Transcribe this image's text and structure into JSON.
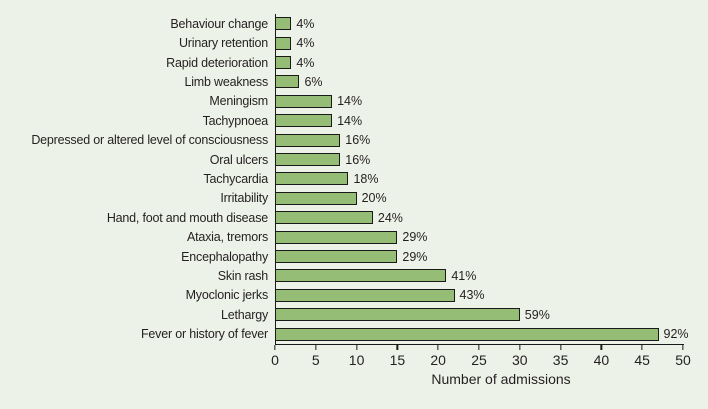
{
  "page": {
    "background_color": "#edf2e8",
    "text_color": "#231f20"
  },
  "chart_data": {
    "type": "bar",
    "orientation": "horizontal",
    "title": "",
    "xlabel": "Number of admissions",
    "ylabel": "",
    "xlim": [
      0,
      50
    ],
    "xticks": [
      0,
      5,
      10,
      15,
      20,
      25,
      30,
      35,
      40,
      45,
      50
    ],
    "grid": "off",
    "bar_color": "#95bd76",
    "bar_border_color": "#1a1a1a",
    "categories": [
      "Behaviour change",
      "Urinary retention",
      "Rapid deterioration",
      "Limb weakness",
      "Meningism",
      "Tachypnoea",
      "Depressed or altered level of consciousness",
      "Oral ulcers",
      "Tachycardia",
      "Irritability",
      "Hand, foot and mouth disease",
      "Ataxia, tremors",
      "Encephalopathy",
      "Skin rash",
      "Myoclonic jerks",
      "Lethargy",
      "Fever or history of fever"
    ],
    "values": [
      2,
      2,
      2,
      3,
      7,
      7,
      8,
      8,
      9,
      10,
      12,
      15,
      15,
      21,
      22,
      30,
      47
    ],
    "bar_labels": [
      "4%",
      "4%",
      "4%",
      "6%",
      "14%",
      "14%",
      "16%",
      "16%",
      "18%",
      "20%",
      "24%",
      "29%",
      "29%",
      "41%",
      "43%",
      "59%",
      "92%"
    ]
  }
}
